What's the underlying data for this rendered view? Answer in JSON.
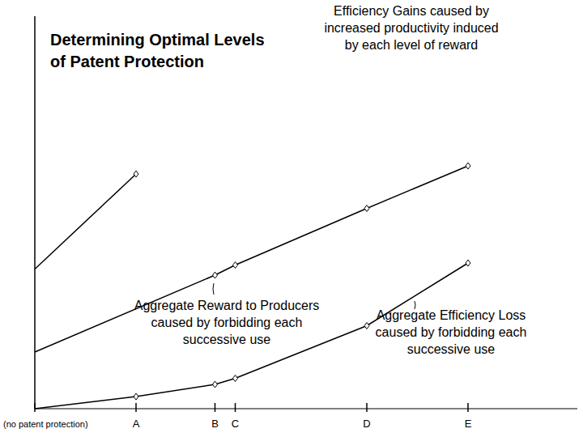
{
  "chart_data": {
    "type": "line",
    "title": "Determining Optimal Levels\nof Patent Protection",
    "xlim": [
      0,
      26.8
    ],
    "ylim": [
      0,
      19.4
    ],
    "xticks": [
      {
        "value": 0,
        "label": "(no patent protection)"
      },
      {
        "value": 5,
        "label": "A"
      },
      {
        "value": 8.9,
        "label": "B"
      },
      {
        "value": 9.9,
        "label": "C"
      },
      {
        "value": 16.4,
        "label": "D"
      },
      {
        "value": 21.4,
        "label": "E"
      }
    ],
    "tick_labels": "x",
    "grid": false,
    "marker": "diamond",
    "series": [
      {
        "color": "#000000",
        "x": [
          0,
          5
        ],
        "values": [
          6.9,
          11.6
        ]
      },
      {
        "color": "#000000",
        "x": [
          0,
          8.9,
          9.9,
          16.4,
          21.4
        ],
        "values": [
          2.8,
          6.6,
          7.1,
          9.9,
          12.0
        ]
      },
      {
        "color": "#000000",
        "x": [
          0,
          5,
          8.9,
          9.9,
          16.4,
          21.4
        ],
        "values": [
          0,
          0.6,
          1.2,
          1.5,
          4.1,
          7.2
        ]
      }
    ],
    "annotations": [
      "Efficiency Gains caused by\nincreased productivity induced\nby each level of reward",
      "Aggregate Reward to Producers\ncaused by forbidding each\nsuccessive use",
      "Aggregate Efficiency Loss\ncaused by forbidding each\nsuccessive use"
    ]
  }
}
